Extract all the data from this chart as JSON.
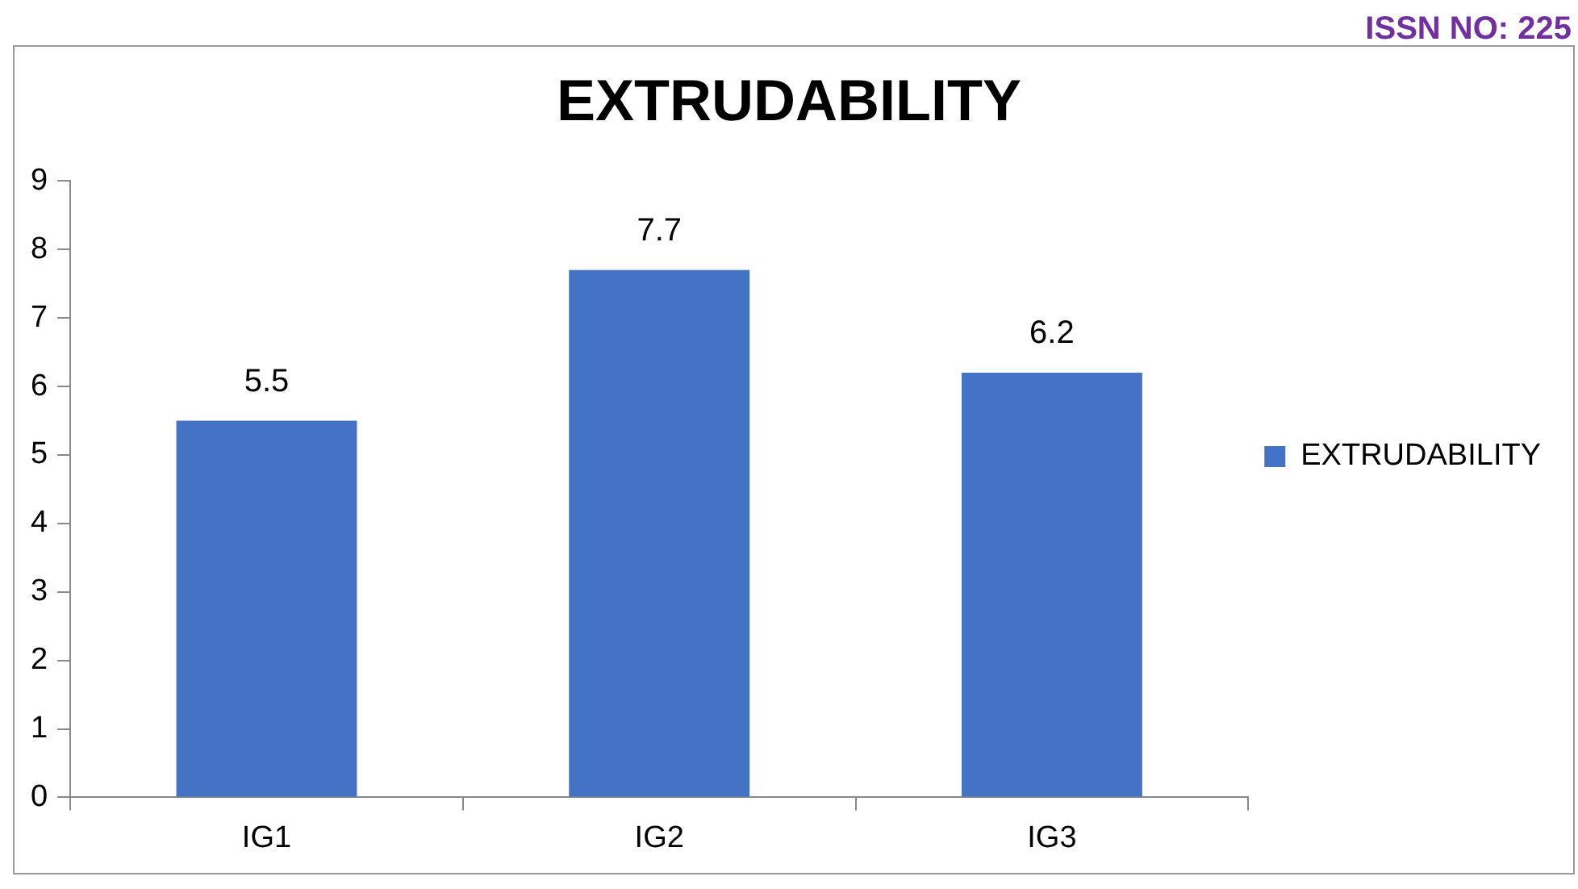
{
  "chart_data": {
    "type": "bar",
    "title": "EXTRUDABILITY",
    "categories": [
      "IG1",
      "IG2",
      "IG3"
    ],
    "series": [
      {
        "name": "EXTRUDABILITY",
        "color": "#4472c4",
        "values": [
          5.5,
          7.7,
          6.2
        ]
      }
    ],
    "ylim": [
      0,
      9
    ],
    "yticks": [
      0,
      1,
      2,
      3,
      4,
      5,
      6,
      7,
      8,
      9
    ],
    "data_labels": true,
    "legend": "right",
    "annotations": [
      "ISSN NO: 225"
    ]
  }
}
